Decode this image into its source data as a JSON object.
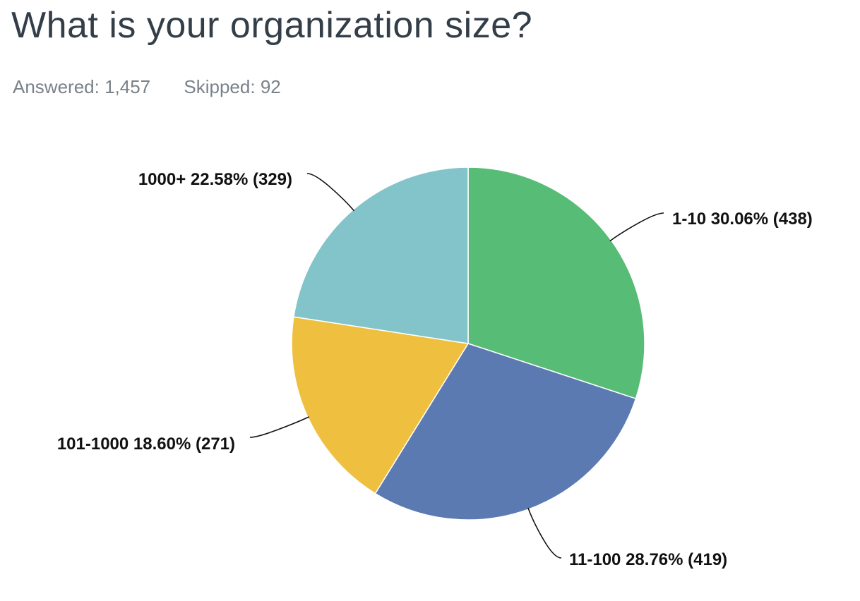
{
  "question": {
    "title": "What is your organization size?",
    "answered_label": "Answered:",
    "answered_count": "1,457",
    "skipped_label": "Skipped:",
    "skipped_count": "92"
  },
  "chart_data": {
    "type": "pie",
    "title": "What is your organization size?",
    "slices": [
      {
        "label": "1-10",
        "percent": 30.06,
        "count": 438,
        "color": "#56bc76",
        "display": "1-10 30.06% (438)"
      },
      {
        "label": "11-100",
        "percent": 28.76,
        "count": 419,
        "color": "#5b7ab1",
        "display": "11-100 28.76% (419)"
      },
      {
        "label": "101-1000",
        "percent": 18.6,
        "count": 271,
        "color": "#efc040",
        "display": "101-1000 18.60% (271)"
      },
      {
        "label": "1000+",
        "percent": 22.58,
        "count": 329,
        "color": "#82c4ca",
        "display": "1000+ 22.58% (329)"
      }
    ],
    "start_direction": "top",
    "rotation": "clockwise",
    "legend": "none"
  }
}
